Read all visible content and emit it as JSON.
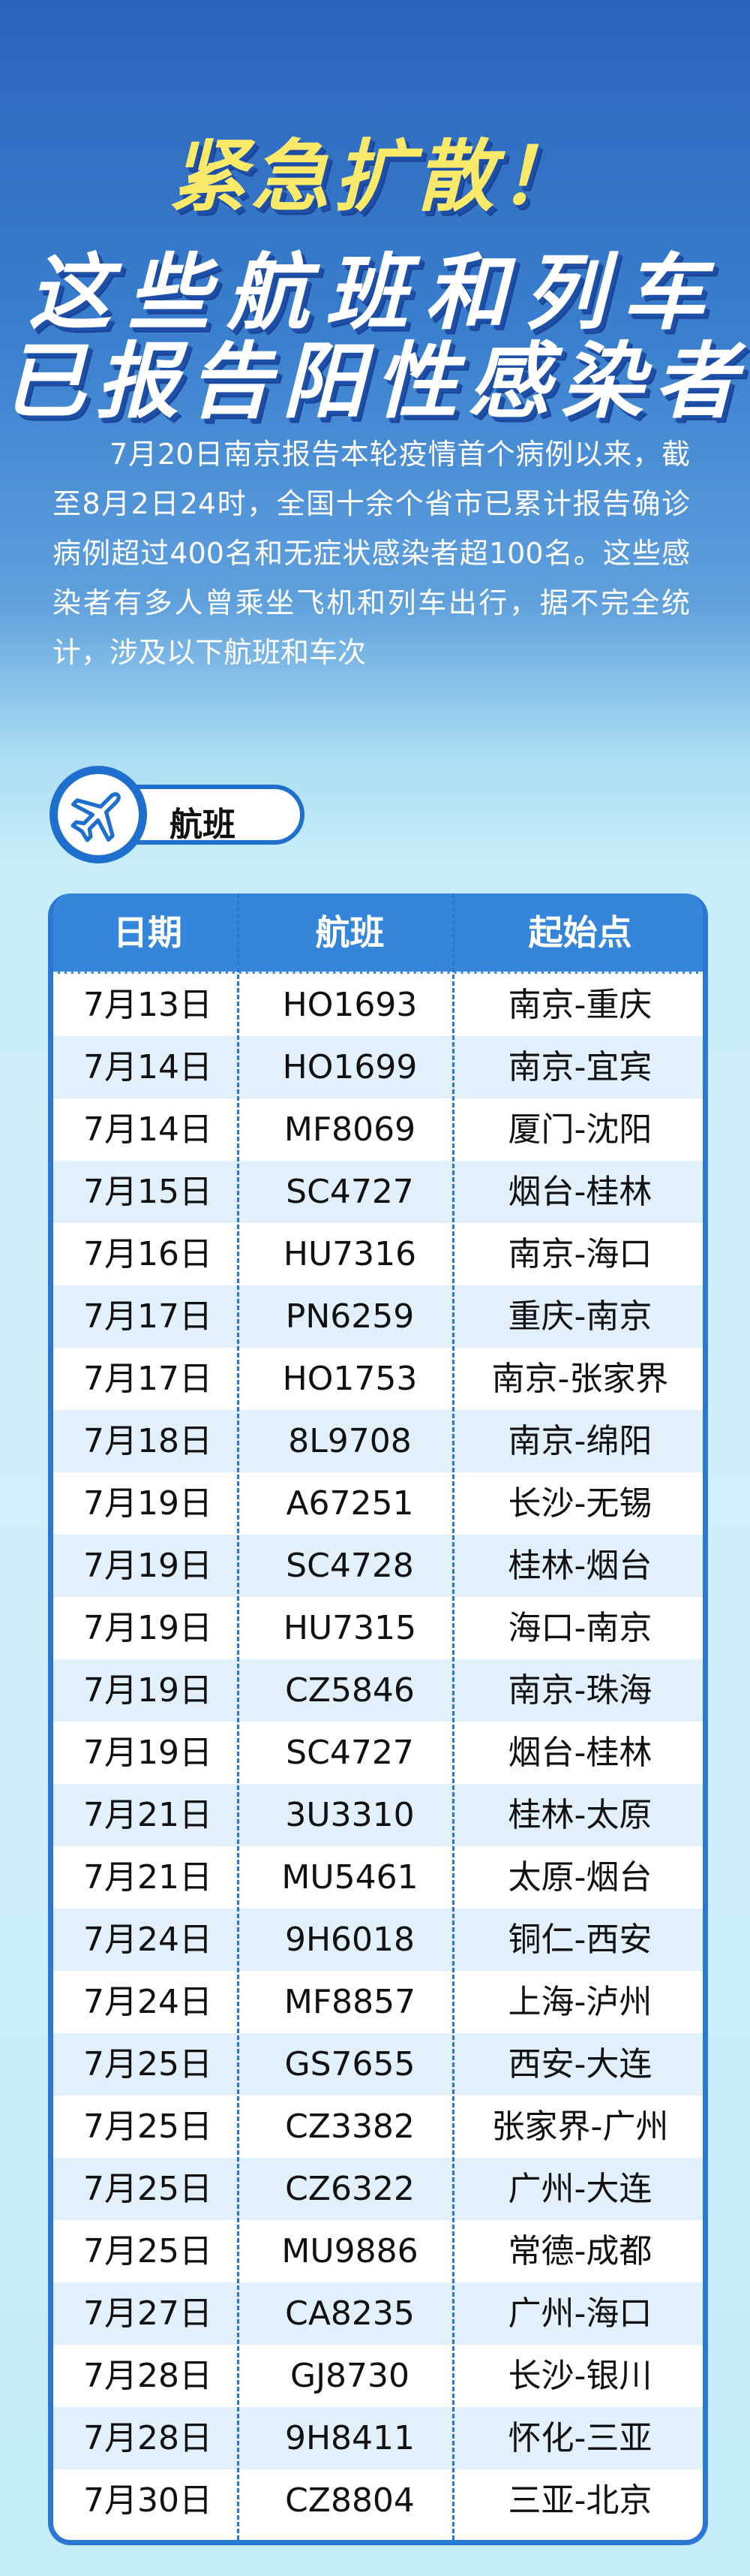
{
  "header": {
    "title_line1": "紧急扩散！",
    "title_line2": "这些航班和列车",
    "title_line3": "已报告阳性感染者"
  },
  "intro": "7月20日南京报告本轮疫情首个病例以来，截至8月2日24时，全国十余个省市已累计报告确诊病例超过400名和无症状感染者超100名。这些感染者有多人曾乘坐飞机和列车出行，据不完全统计，涉及以下航班和车次",
  "section": {
    "label": "航班",
    "icon": "airplane-icon"
  },
  "colors": {
    "accent": "#2a78d4",
    "header_bg": "#3586db",
    "title_yellow": "#fbe96a",
    "row_alt": "#e2f0fb"
  },
  "table": {
    "columns": [
      "日期",
      "航班",
      "起始点"
    ],
    "rows": [
      [
        "7月13日",
        "HO1693",
        "南京-重庆"
      ],
      [
        "7月14日",
        "HO1699",
        "南京-宜宾"
      ],
      [
        "7月14日",
        "MF8069",
        "厦门-沈阳"
      ],
      [
        "7月15日",
        "SC4727",
        "烟台-桂林"
      ],
      [
        "7月16日",
        "HU7316",
        "南京-海口"
      ],
      [
        "7月17日",
        "PN6259",
        "重庆-南京"
      ],
      [
        "7月17日",
        "HO1753",
        "南京-张家界"
      ],
      [
        "7月18日",
        "8L9708",
        "南京-绵阳"
      ],
      [
        "7月19日",
        "A67251",
        "长沙-无锡"
      ],
      [
        "7月19日",
        "SC4728",
        "桂林-烟台"
      ],
      [
        "7月19日",
        "HU7315",
        "海口-南京"
      ],
      [
        "7月19日",
        "CZ5846",
        "南京-珠海"
      ],
      [
        "7月19日",
        "SC4727",
        "烟台-桂林"
      ],
      [
        "7月21日",
        "3U3310",
        "桂林-太原"
      ],
      [
        "7月21日",
        "MU5461",
        "太原-烟台"
      ],
      [
        "7月24日",
        "9H6018",
        "铜仁-西安"
      ],
      [
        "7月24日",
        "MF8857",
        "上海-泸州"
      ],
      [
        "7月25日",
        "GS7655",
        "西安-大连"
      ],
      [
        "7月25日",
        "CZ3382",
        "张家界-广州"
      ],
      [
        "7月25日",
        "CZ6322",
        "广州-大连"
      ],
      [
        "7月25日",
        "MU9886",
        "常德-成都"
      ],
      [
        "7月27日",
        "CA8235",
        "广州-海口"
      ],
      [
        "7月28日",
        "GJ8730",
        "长沙-银川"
      ],
      [
        "7月28日",
        "9H8411",
        "怀化-三亚"
      ],
      [
        "7月30日",
        "CZ8804",
        "三亚-北京"
      ]
    ]
  }
}
